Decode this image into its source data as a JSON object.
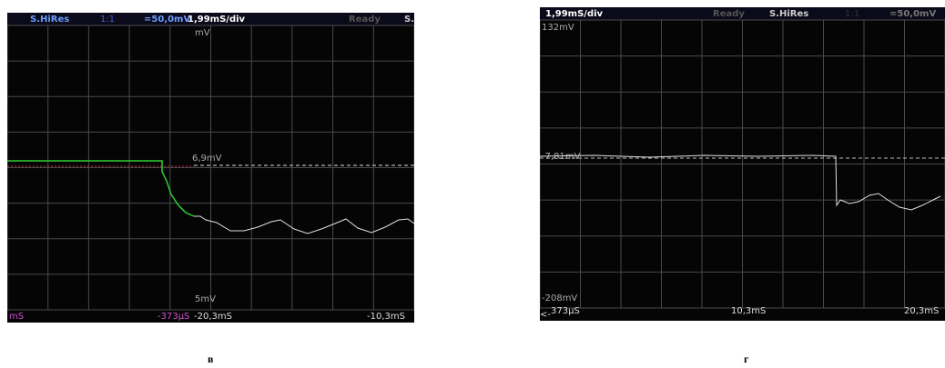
{
  "panels": [
    {
      "header": {
        "mode": "S.HiRes",
        "coupling": "1:1",
        "scale": "=50,0mV",
        "timebase": "1,99mS/div",
        "status": "Ready",
        "extra": "S."
      },
      "levels": {
        "top": "mV",
        "middle": "6,9mV",
        "bottom": "5mV"
      },
      "footer": {
        "left": "mS",
        "marker": "-373µS",
        "start": "-20,3mS",
        "end": "-10,3mS"
      },
      "caption": "в"
    },
    {
      "header": {
        "timebase": "1,99mS/div",
        "status": "Ready",
        "mode": "S.HiRes",
        "coupling": "1:1",
        "scale": "=50,0mV"
      },
      "levels": {
        "top": "132mV",
        "middle": "-7,81mV",
        "bottom": "-208mV"
      },
      "footer": {
        "arrow": "<-",
        "marker": "373µS",
        "mid": "10,3mS",
        "end": "20,3mS"
      },
      "caption": "г"
    }
  ]
}
